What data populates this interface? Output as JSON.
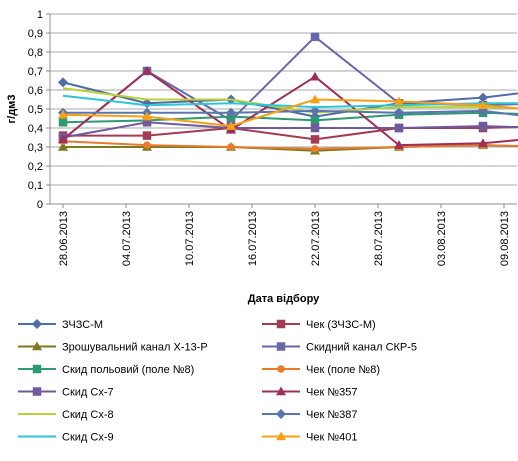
{
  "chart_data": {
    "type": "line",
    "title": "",
    "xlabel": "Дата відбору",
    "ylabel": "г/дм3",
    "ylim": [
      0,
      1
    ],
    "yticks": [
      "0",
      "0,1",
      "0,2",
      "0,3",
      "0,4",
      "0,5",
      "0,6",
      "0,7",
      "0,8",
      "0,9",
      "1"
    ],
    "xtick_labels": [
      "28.06.2013",
      "04.07.2013",
      "10.07.2013",
      "16.07.2013",
      "22.07.2013",
      "28.07.2013",
      "03.08.2013",
      "09.08.2013"
    ],
    "x_sample_dates": [
      "28.06.2013",
      "06.07.2013",
      "14.07.2013",
      "22.07.2013",
      "30.07.2013",
      "07.08.2013",
      "13.08.2013"
    ],
    "grid": "horizontal",
    "legend_position": "bottom",
    "series": [
      {
        "name": "ЗЧЗС-М",
        "color": "#4F6BA8",
        "marker": "diamond",
        "values": [
          0.64,
          0.53,
          0.55,
          0.46,
          0.53,
          0.56,
          0.6
        ]
      },
      {
        "name": "Чек  (ЗЧЗС-М)",
        "color": "#A23B55",
        "marker": "square",
        "values": [
          0.36,
          0.36,
          0.4,
          0.34,
          0.4,
          0.4,
          0.41
        ]
      },
      {
        "name": "Зрошувальний канал Х-13-Р",
        "color": "#7C7A1E",
        "marker": "triangle",
        "values": [
          0.3,
          0.3,
          0.3,
          0.28,
          0.3,
          0.31,
          0.3
        ]
      },
      {
        "name": "Скидний канал СКР-5",
        "color": "#6667A8",
        "marker": "square",
        "values": [
          0.34,
          0.7,
          0.44,
          0.88,
          0.53,
          0.52,
          0.53
        ]
      },
      {
        "name": "Скид польовий (поле №8)",
        "color": "#2E9A72",
        "marker": "square",
        "values": [
          0.43,
          0.44,
          0.46,
          0.44,
          0.47,
          0.48,
          0.47
        ]
      },
      {
        "name": "Чек (поле №8)",
        "color": "#E87A2C",
        "marker": "circle",
        "values": [
          0.33,
          0.31,
          0.3,
          0.29,
          0.3,
          0.31,
          0.3
        ]
      },
      {
        "name": "Скид Сх-7",
        "color": "#6F5A9C",
        "marker": "square",
        "values": [
          0.35,
          0.43,
          0.4,
          0.4,
          0.4,
          0.41,
          0.4
        ]
      },
      {
        "name": "Чек №357",
        "color": "#9E2F5B",
        "marker": "triangle",
        "values": [
          0.34,
          0.7,
          0.39,
          0.67,
          0.31,
          0.32,
          0.35
        ]
      },
      {
        "name": "Скид Сх-8",
        "color": "#B8D23A",
        "marker": "none",
        "values": [
          0.61,
          0.55,
          0.55,
          0.48,
          0.51,
          0.51,
          0.5
        ]
      },
      {
        "name": "Чек №387",
        "color": "#5975AE",
        "marker": "diamond",
        "values": [
          0.48,
          0.48,
          0.48,
          0.49,
          0.48,
          0.49,
          0.45
        ]
      },
      {
        "name": "Скид Сх-9",
        "color": "#2EC6D6",
        "marker": "none",
        "values": [
          0.57,
          0.52,
          0.53,
          0.51,
          0.52,
          0.53,
          0.53
        ]
      },
      {
        "name": "Чек №401",
        "color": "#F5A115",
        "marker": "triangle",
        "values": [
          0.47,
          0.46,
          0.41,
          0.55,
          0.54,
          0.52,
          0.49
        ]
      }
    ]
  }
}
